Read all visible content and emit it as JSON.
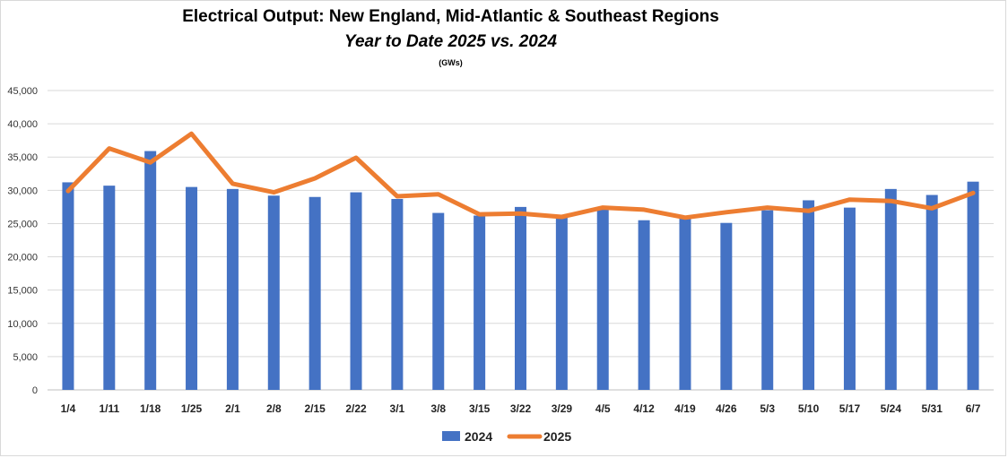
{
  "chart_data": {
    "type": "bar",
    "title": "Electrical Output:  New England, Mid-Atlantic & Southeast Regions",
    "subtitle": "Year to Date 2025 vs. 2024",
    "unit_label": "(GWs)",
    "categories": [
      "1/4",
      "1/11",
      "1/18",
      "1/25",
      "2/1",
      "2/8",
      "2/15",
      "2/22",
      "3/1",
      "3/8",
      "3/15",
      "3/22",
      "3/29",
      "4/5",
      "4/12",
      "4/19",
      "4/26",
      "5/3",
      "5/10",
      "5/17",
      "5/24",
      "5/31",
      "6/7"
    ],
    "series": [
      {
        "name": "2024",
        "type": "bar",
        "color": "#4472c4",
        "values": [
          31200,
          30700,
          35900,
          30500,
          30200,
          29200,
          29000,
          29700,
          28700,
          26600,
          26200,
          27500,
          26100,
          27200,
          25500,
          26000,
          25100,
          27000,
          28500,
          27400,
          30200,
          29300,
          31300
        ]
      },
      {
        "name": "2025",
        "type": "line",
        "color": "#ed7d31",
        "values": [
          29900,
          36300,
          34200,
          38500,
          31000,
          29700,
          31800,
          34900,
          29100,
          29400,
          26400,
          26500,
          26000,
          27400,
          27100,
          25900,
          26700,
          27400,
          26900,
          28600,
          28400,
          27300,
          29600
        ]
      }
    ],
    "yticks": [
      "0",
      "5,000",
      "10,000",
      "15,000",
      "20,000",
      "25,000",
      "30,000",
      "35,000",
      "40,000",
      "45,000"
    ],
    "ylim": [
      0,
      45000
    ],
    "grid": true,
    "legend_position": "bottom"
  }
}
